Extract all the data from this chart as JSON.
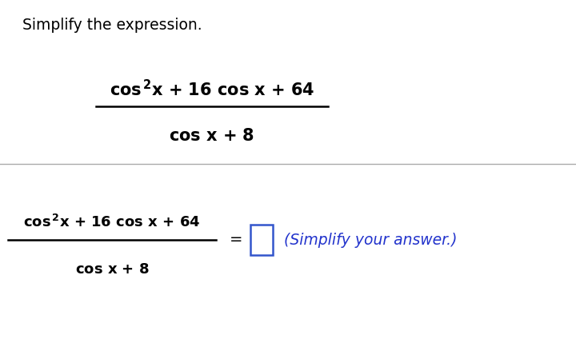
{
  "background_color": "#ffffff",
  "title_text": "Simplify the expression.",
  "title_fontsize": 13.5,
  "title_color": "#000000",
  "divider_color": "#aaaaaa",
  "text_color": "#000000",
  "box_color": "#3355cc",
  "answer_color": "#2233cc",
  "answer_text": "(Simplify your answer.)",
  "fig_width": 7.2,
  "fig_height": 4.34,
  "dpi": 100
}
